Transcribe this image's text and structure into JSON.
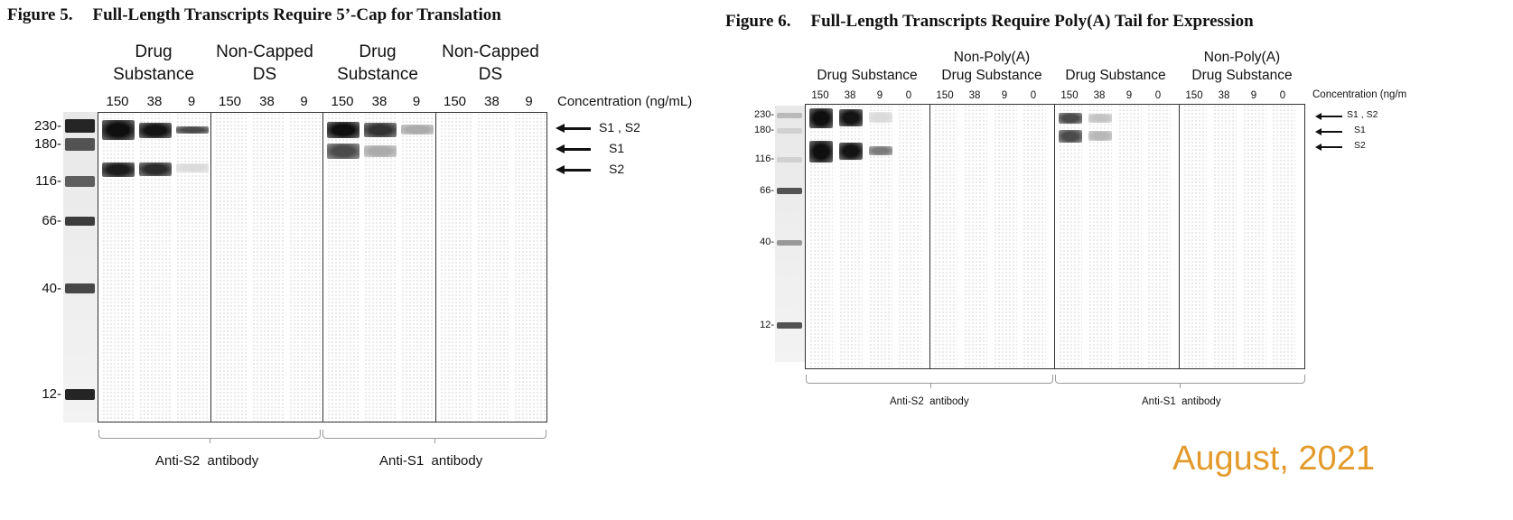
{
  "figure5": {
    "number": "Figure 5.",
    "title": "Full-Length Transcripts Require 5’-Cap for Translation",
    "groups": [
      {
        "line1": "Drug",
        "line2": "Substance"
      },
      {
        "line1": "Non-Capped",
        "line2": "DS"
      },
      {
        "line1": "Drug",
        "line2": "Substance"
      },
      {
        "line1": "Non-Capped",
        "line2": "DS"
      }
    ],
    "concentrations": [
      "150",
      "38",
      "9"
    ],
    "concentration_label": "Concentration (ng/mL)",
    "markers": [
      "230-",
      "180-",
      "116-",
      "66-",
      "40-",
      "12-"
    ],
    "arrows": [
      "S1 , S2",
      "S1",
      "S2"
    ],
    "antibodies": [
      "Anti-S2  antibody",
      "Anti-S1  antibody"
    ]
  },
  "figure6": {
    "number": "Figure 6.",
    "title": "Full-Length Transcripts Require Poly(A) Tail for Expression",
    "groups": [
      {
        "line1": "",
        "line2": "Drug Substance"
      },
      {
        "line1": "Non-Poly(A)",
        "line2": "Drug Substance"
      },
      {
        "line1": "",
        "line2": "Drug Substance"
      },
      {
        "line1": "Non-Poly(A)",
        "line2": "Drug Substance"
      }
    ],
    "concentrations": [
      "150",
      "38",
      "9",
      "0"
    ],
    "concentration_label": "Concentration (ng/m",
    "markers": [
      "230-",
      "180-",
      "116-",
      "66-",
      "40-",
      "12-"
    ],
    "arrows": [
      "S1 , S2",
      "S1",
      "S2"
    ],
    "antibodies": [
      "Anti-S2  antibody",
      "Anti-S1  antibody"
    ]
  },
  "date": "August, 2021",
  "colors": {
    "date": "#e39a2a",
    "band": "#111111"
  }
}
